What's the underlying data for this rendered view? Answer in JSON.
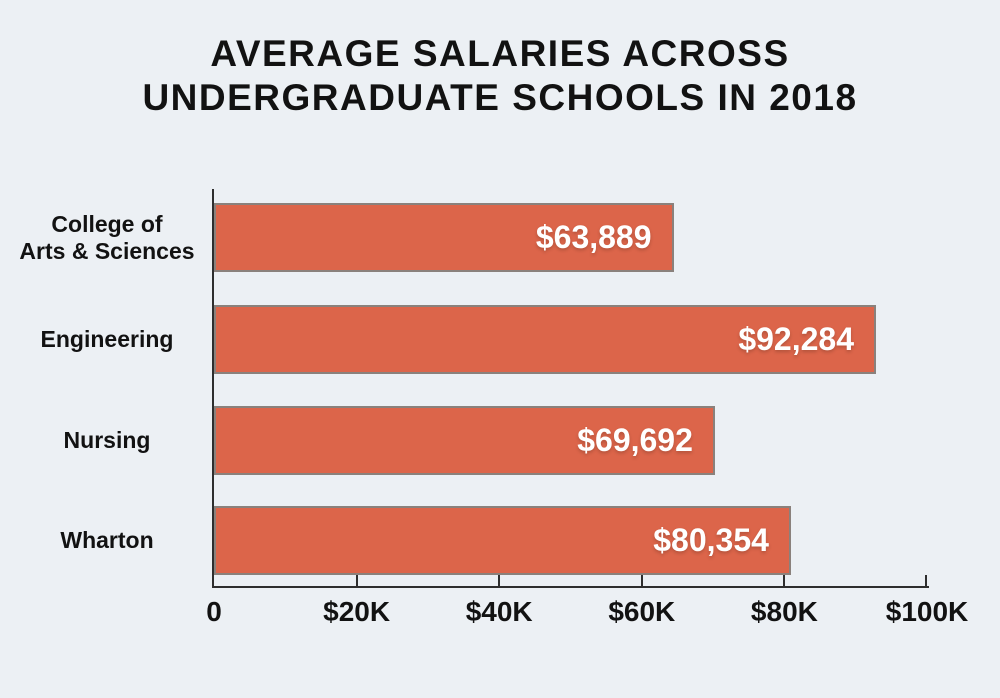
{
  "page": {
    "background_color": "#ecf0f4"
  },
  "chart_data": {
    "type": "bar",
    "orientation": "horizontal",
    "title": "AVERAGE SALARIES ACROSS UNDERGRADUATE SCHOOLS IN 2018",
    "title_lines": [
      "AVERAGE SALARIES ACROSS",
      "UNDERGRADUATE SCHOOLS IN 2018"
    ],
    "categories": [
      "College of Arts & Sciences",
      "Engineering",
      "Nursing",
      "Wharton"
    ],
    "category_lines": [
      [
        "College of",
        "Arts & Sciences"
      ],
      [
        "Engineering"
      ],
      [
        "Nursing"
      ],
      [
        "Wharton"
      ]
    ],
    "values": [
      63889,
      92284,
      69692,
      80354
    ],
    "value_labels": [
      "$63,889",
      "$92,284",
      "$69,692",
      "$80,354"
    ],
    "x_ticks": [
      "0",
      "$20K",
      "$40K",
      "$60K",
      "$80K",
      "$100K"
    ],
    "x_tick_values": [
      0,
      20000,
      40000,
      60000,
      80000,
      100000
    ],
    "xlim": [
      0,
      100000
    ],
    "xlabel": "",
    "ylabel": "",
    "grid": false,
    "legend_position": "none",
    "bar_color": "#dc654a",
    "bar_border_color": "#8a817c",
    "value_label_color": "#ffffff",
    "axis_color": "#2e2e2e",
    "text_color": "#121212"
  }
}
